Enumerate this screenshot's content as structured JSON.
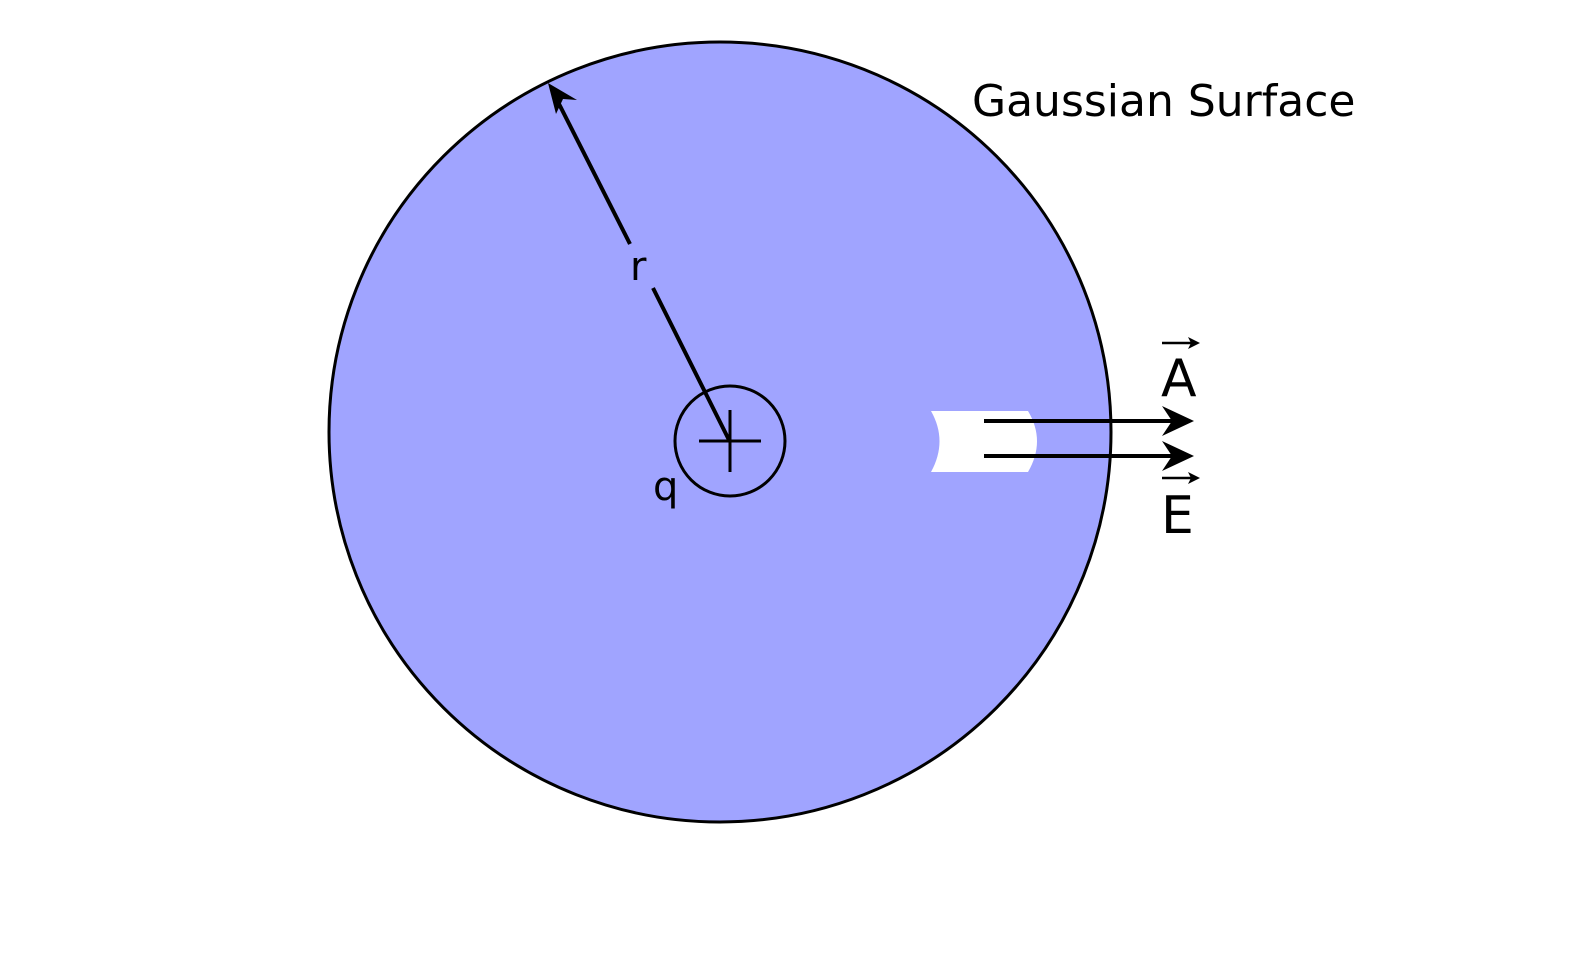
{
  "diagram": {
    "title": "Gaussian Surface",
    "radius_label": "r",
    "charge_label": "q",
    "area_vector_label": "A",
    "field_vector_label": "E",
    "charge_sign": "plus-icon",
    "colors": {
      "surface_fill": "#a0a4ff",
      "stroke": "#000000",
      "area_patch": "#ffffff",
      "background": "#ffffff"
    }
  }
}
